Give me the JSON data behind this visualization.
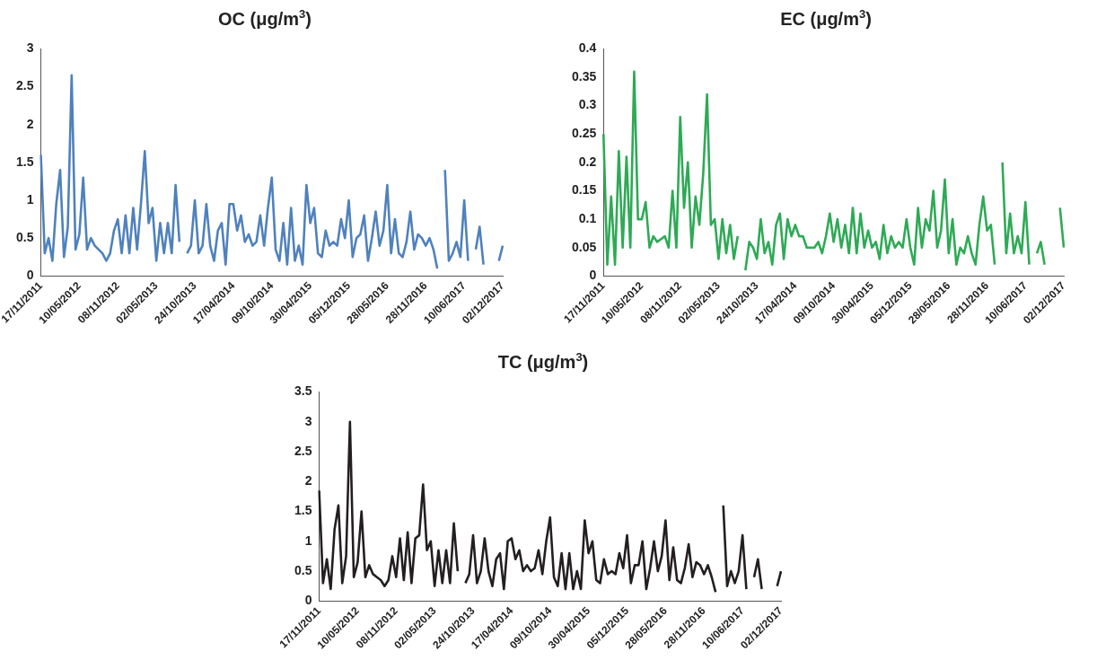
{
  "chart_data": [
    {
      "type": "line",
      "title": "OC (μg/m$^{3}$)",
      "marker": "none",
      "ylim": [
        0,
        3
      ],
      "yticks": [
        0,
        0.5,
        1,
        1.5,
        2,
        2.5,
        3
      ],
      "categories": [
        "17/11/2011",
        null,
        null,
        null,
        null,
        null,
        null,
        null,
        null,
        null,
        "10/05/2012",
        null,
        null,
        null,
        null,
        null,
        null,
        null,
        null,
        null,
        "08/11/2012",
        null,
        null,
        null,
        null,
        null,
        null,
        null,
        null,
        null,
        "02/05/2013",
        null,
        null,
        null,
        null,
        null,
        null,
        null,
        null,
        null,
        "24/10/2013",
        null,
        null,
        null,
        null,
        null,
        null,
        null,
        null,
        null,
        "17/04/2014",
        null,
        null,
        null,
        null,
        null,
        null,
        null,
        null,
        null,
        "09/10/2014",
        null,
        null,
        null,
        null,
        null,
        null,
        null,
        null,
        null,
        "30/04/2015",
        null,
        null,
        null,
        null,
        null,
        null,
        null,
        null,
        null,
        "05/12/2015",
        null,
        null,
        null,
        null,
        null,
        null,
        null,
        null,
        null,
        "28/05/2016",
        null,
        null,
        null,
        null,
        null,
        null,
        null,
        null,
        null,
        "28/11/2016",
        null,
        null,
        null,
        null,
        null,
        null,
        null,
        null,
        null,
        "10/06/2017",
        null,
        null,
        null,
        null,
        null,
        null,
        null,
        null,
        null,
        "02/12/2017"
      ],
      "series": [
        {
          "color": "#4f81bd",
          "values": [
            1.6,
            0.3,
            0.5,
            0.2,
            0.95,
            1.4,
            0.25,
            0.65,
            2.65,
            0.35,
            0.55,
            1.3,
            0.35,
            0.5,
            0.4,
            0.35,
            0.3,
            0.2,
            0.3,
            0.6,
            0.75,
            0.3,
            0.8,
            0.3,
            0.9,
            0.35,
            0.95,
            1.65,
            0.7,
            0.9,
            0.2,
            0.7,
            0.3,
            0.7,
            0.3,
            1.2,
            0.45,
            null,
            0.3,
            0.4,
            1.0,
            0.3,
            0.4,
            0.95,
            0.4,
            0.2,
            0.6,
            0.7,
            0.15,
            0.95,
            0.95,
            0.6,
            0.8,
            0.45,
            0.55,
            0.4,
            0.45,
            0.8,
            0.4,
            0.9,
            1.3,
            0.35,
            0.2,
            0.7,
            0.15,
            0.9,
            0.2,
            0.4,
            0.15,
            1.2,
            0.7,
            0.9,
            0.3,
            0.25,
            0.6,
            0.4,
            0.45,
            0.4,
            0.75,
            0.5,
            1.0,
            0.25,
            0.5,
            0.55,
            0.8,
            0.2,
            0.5,
            0.85,
            0.4,
            0.6,
            1.2,
            0.3,
            0.75,
            0.3,
            0.25,
            0.45,
            0.85,
            0.35,
            0.55,
            0.5,
            0.4,
            0.5,
            0.35,
            0.1,
            null,
            1.4,
            0.2,
            0.3,
            0.45,
            0.25,
            1.0,
            0.2,
            null,
            0.35,
            0.65,
            0.15,
            null,
            null,
            null,
            0.2,
            0.4
          ]
        }
      ]
    },
    {
      "type": "line",
      "title": "EC (μg/m$^{3}$)",
      "marker": "none",
      "ylim": [
        0,
        0.4
      ],
      "yticks": [
        0,
        0.05,
        0.1,
        0.15,
        0.2,
        0.25,
        0.3,
        0.35,
        0.4
      ],
      "categories": [
        "17/11/2011",
        null,
        null,
        null,
        null,
        null,
        null,
        null,
        null,
        null,
        "10/05/2012",
        null,
        null,
        null,
        null,
        null,
        null,
        null,
        null,
        null,
        "08/11/2012",
        null,
        null,
        null,
        null,
        null,
        null,
        null,
        null,
        null,
        "02/05/2013",
        null,
        null,
        null,
        null,
        null,
        null,
        null,
        null,
        null,
        "24/10/2013",
        null,
        null,
        null,
        null,
        null,
        null,
        null,
        null,
        null,
        "17/04/2014",
        null,
        null,
        null,
        null,
        null,
        null,
        null,
        null,
        null,
        "09/10/2014",
        null,
        null,
        null,
        null,
        null,
        null,
        null,
        null,
        null,
        "30/04/2015",
        null,
        null,
        null,
        null,
        null,
        null,
        null,
        null,
        null,
        "05/12/2015",
        null,
        null,
        null,
        null,
        null,
        null,
        null,
        null,
        null,
        "28/05/2016",
        null,
        null,
        null,
        null,
        null,
        null,
        null,
        null,
        null,
        "28/11/2016",
        null,
        null,
        null,
        null,
        null,
        null,
        null,
        null,
        null,
        "10/06/2017",
        null,
        null,
        null,
        null,
        null,
        null,
        null,
        null,
        null,
        "02/12/2017"
      ],
      "series": [
        {
          "color": "#2eaa55",
          "values": [
            0.25,
            0.02,
            0.14,
            0.02,
            0.22,
            0.05,
            0.21,
            0.05,
            0.36,
            0.1,
            0.1,
            0.13,
            0.05,
            0.07,
            0.06,
            0.065,
            0.07,
            0.05,
            0.15,
            0.05,
            0.28,
            0.12,
            0.2,
            0.05,
            0.14,
            0.09,
            0.18,
            0.32,
            0.09,
            0.1,
            0.03,
            0.1,
            0.04,
            0.09,
            0.03,
            0.07,
            null,
            0.01,
            0.06,
            0.05,
            0.03,
            0.1,
            0.04,
            0.06,
            0.02,
            0.09,
            0.11,
            0.03,
            0.1,
            0.07,
            0.09,
            0.07,
            0.07,
            0.05,
            0.05,
            0.05,
            0.06,
            0.04,
            0.07,
            0.11,
            0.06,
            0.1,
            0.05,
            0.09,
            0.04,
            0.12,
            0.04,
            0.11,
            0.05,
            0.08,
            0.05,
            0.06,
            0.03,
            0.09,
            0.04,
            0.07,
            0.05,
            0.06,
            0.05,
            0.1,
            0.05,
            0.02,
            0.12,
            0.05,
            0.1,
            0.08,
            0.15,
            0.05,
            0.08,
            0.17,
            0.04,
            0.1,
            0.02,
            0.05,
            0.04,
            0.07,
            0.04,
            0.02,
            0.09,
            0.14,
            0.08,
            0.09,
            0.02,
            null,
            0.2,
            0.04,
            0.11,
            0.04,
            0.07,
            0.04,
            0.13,
            0.02,
            null,
            0.04,
            0.06,
            0.02,
            null,
            null,
            null,
            0.12,
            0.05
          ]
        }
      ]
    },
    {
      "type": "line",
      "title": "TC (μg/m$^{3}$)",
      "marker": "none",
      "ylim": [
        0,
        3.5
      ],
      "yticks": [
        0,
        0.5,
        1,
        1.5,
        2,
        2.5,
        3,
        3.5
      ],
      "categories": [
        "17/11/2011",
        null,
        null,
        null,
        null,
        null,
        null,
        null,
        null,
        null,
        "10/05/2012",
        null,
        null,
        null,
        null,
        null,
        null,
        null,
        null,
        null,
        "08/11/2012",
        null,
        null,
        null,
        null,
        null,
        null,
        null,
        null,
        null,
        "02/05/2013",
        null,
        null,
        null,
        null,
        null,
        null,
        null,
        null,
        null,
        "24/10/2013",
        null,
        null,
        null,
        null,
        null,
        null,
        null,
        null,
        null,
        "17/04/2014",
        null,
        null,
        null,
        null,
        null,
        null,
        null,
        null,
        null,
        "09/10/2014",
        null,
        null,
        null,
        null,
        null,
        null,
        null,
        null,
        null,
        "30/04/2015",
        null,
        null,
        null,
        null,
        null,
        null,
        null,
        null,
        null,
        "05/12/2015",
        null,
        null,
        null,
        null,
        null,
        null,
        null,
        null,
        null,
        "28/05/2016",
        null,
        null,
        null,
        null,
        null,
        null,
        null,
        null,
        null,
        "28/11/2016",
        null,
        null,
        null,
        null,
        null,
        null,
        null,
        null,
        null,
        "10/06/2017",
        null,
        null,
        null,
        null,
        null,
        null,
        null,
        null,
        null,
        "02/12/2017"
      ],
      "series": [
        {
          "color": "#231f20",
          "values": [
            1.85,
            0.3,
            0.7,
            0.2,
            1.2,
            1.6,
            0.3,
            0.75,
            3.0,
            0.4,
            0.65,
            1.5,
            0.4,
            0.6,
            0.45,
            0.4,
            0.35,
            0.25,
            0.35,
            0.75,
            0.4,
            1.05,
            0.35,
            1.15,
            0.3,
            1.05,
            1.1,
            1.95,
            0.85,
            1.0,
            0.25,
            0.85,
            0.3,
            0.85,
            0.3,
            1.3,
            0.5,
            null,
            0.3,
            0.45,
            1.1,
            0.3,
            0.5,
            1.05,
            0.5,
            0.25,
            0.7,
            0.8,
            0.2,
            1.0,
            1.05,
            0.7,
            0.85,
            0.5,
            0.6,
            0.5,
            0.55,
            0.85,
            0.45,
            1.0,
            1.4,
            0.4,
            0.25,
            0.8,
            0.2,
            0.8,
            0.2,
            0.5,
            0.2,
            1.35,
            0.8,
            1.0,
            0.35,
            0.3,
            0.7,
            0.45,
            0.5,
            0.45,
            0.8,
            0.55,
            1.1,
            0.3,
            0.6,
            0.6,
            1.0,
            0.2,
            0.55,
            1.0,
            0.5,
            0.75,
            1.35,
            0.35,
            0.9,
            0.35,
            0.3,
            0.55,
            0.95,
            0.4,
            0.65,
            0.6,
            0.45,
            0.6,
            0.4,
            0.15,
            null,
            1.6,
            0.25,
            0.5,
            0.3,
            0.5,
            1.1,
            0.2,
            null,
            0.4,
            0.7,
            0.2,
            null,
            null,
            null,
            0.25,
            0.5
          ]
        }
      ]
    }
  ]
}
